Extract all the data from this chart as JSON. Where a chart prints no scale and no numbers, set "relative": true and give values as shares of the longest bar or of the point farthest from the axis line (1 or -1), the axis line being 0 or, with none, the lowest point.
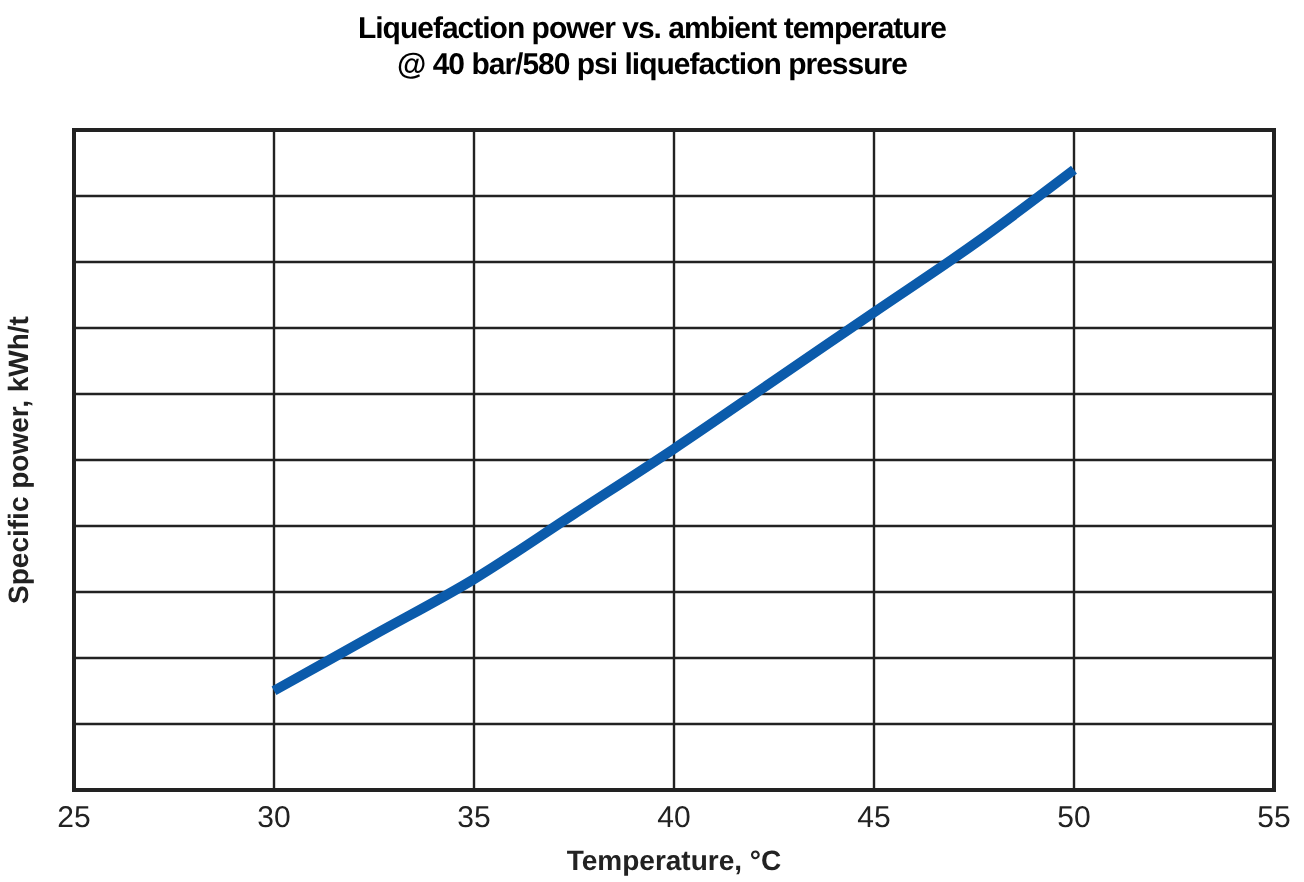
{
  "chart_data": {
    "type": "line",
    "title": "Liquefaction power vs. ambient temperature\n@ 40 bar/580 psi liquefaction pressure",
    "xlabel": "Temperature, °C",
    "ylabel": "Specific power, kWh/t",
    "relative": true,
    "x": [
      30,
      32.5,
      35,
      37.5,
      40,
      42.5,
      45,
      47.5,
      50
    ],
    "series": [
      {
        "color": "#0b5bab",
        "values": [
          0.16,
          0.25,
          0.34,
          0.445,
          0.55,
          0.66,
          0.77,
          0.88,
          1
        ]
      }
    ],
    "xlim": [
      25,
      55
    ],
    "xticks": [
      25,
      30,
      35,
      40,
      45,
      50,
      55
    ],
    "grid": true,
    "legend": false,
    "marker": "none",
    "line_style": "solid"
  }
}
